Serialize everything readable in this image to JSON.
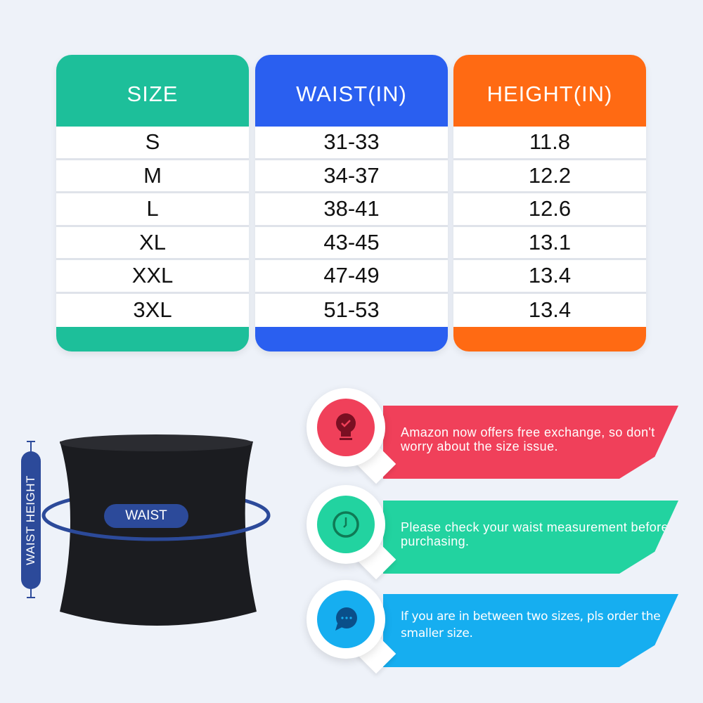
{
  "table": {
    "columns": [
      {
        "header": "SIZE",
        "color": "#1dbf9a",
        "values": [
          "S",
          "M",
          "L",
          "XL",
          "XXL",
          "3XL"
        ]
      },
      {
        "header": "WAIST(IN)",
        "color": "#2a5ff0",
        "values": [
          "31-33",
          "34-37",
          "38-41",
          "43-45",
          "47-49",
          "51-53"
        ]
      },
      {
        "header": "HEIGHT(IN)",
        "color": "#ff6a13",
        "values": [
          "11.8",
          "12.2",
          "12.6",
          "13.1",
          "13.4",
          "13.4"
        ]
      }
    ]
  },
  "illustration": {
    "waist_label": "WAIST",
    "height_label": "WAIST HEIGHT",
    "accent": "#2c4a9a"
  },
  "tips": [
    {
      "icon": "lightbulb-check-icon",
      "color": "#f0405a",
      "text": "Amazon now offers free exchange, so don't worry about the size issue."
    },
    {
      "icon": "clock-icon",
      "color": "#22d3a0",
      "text": "Please check your waist measurement before purchasing."
    },
    {
      "icon": "chat-bubble-icon",
      "color": "#16aef0",
      "text": "If you are in between two sizes, pls order the smaller size."
    }
  ]
}
